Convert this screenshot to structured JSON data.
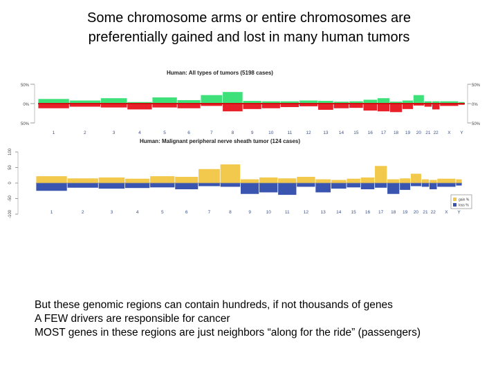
{
  "slide": {
    "title_line1": "Some chromosome arms or entire chromosomes are",
    "title_line2": "preferentially gained and lost in many human tumors",
    "bullets": [
      "But these genomic regions can contain hundreds, if not thousands of genes",
      "A FEW drivers are responsible for cancer",
      "MOST genes in these regions are just neighbors “along for the ride” (passengers)"
    ]
  },
  "colors": {
    "gain_top": "#3ee07a",
    "loss_top": "#e8202a",
    "baseline_top": "#cc1111",
    "gain_bottom": "#f2c94c",
    "loss_bottom": "#3a55b0",
    "axis": "#555555"
  },
  "chart_data": [
    {
      "type": "area",
      "title": "Human: All types of tumors (5198 cases)",
      "y_tick_labels_left": [
        "50%",
        "0%",
        "50%"
      ],
      "y_tick_labels_right": [
        "50%",
        "0%",
        "50%"
      ],
      "ylim": [
        -50,
        50
      ],
      "categories": [
        "1",
        "2",
        "3",
        "4",
        "5",
        "6",
        "7",
        "8",
        "9",
        "10",
        "11",
        "12",
        "13",
        "14",
        "15",
        "16",
        "17",
        "18",
        "19",
        "20",
        "21",
        "22",
        "X",
        "Y"
      ],
      "series": [
        {
          "role": "gain",
          "values": [
            12,
            8,
            14,
            4,
            16,
            9,
            22,
            30,
            7,
            6,
            6,
            8,
            7,
            5,
            6,
            10,
            14,
            5,
            8,
            22,
            6,
            6,
            6,
            4
          ]
        },
        {
          "role": "loss",
          "values": [
            -12,
            -8,
            -10,
            -15,
            -10,
            -12,
            -6,
            -20,
            -14,
            -12,
            -9,
            -7,
            -16,
            -12,
            -11,
            -18,
            -20,
            -22,
            -14,
            -5,
            -8,
            -15,
            -6,
            -3
          ]
        }
      ]
    },
    {
      "type": "area",
      "title": "Human: Malignant peripheral nerve sheath tumor (124 cases)",
      "y_tick_labels": [
        "100",
        "50",
        "0",
        "-50",
        "-100"
      ],
      "ylim": [
        -100,
        100
      ],
      "categories": [
        "1",
        "2",
        "3",
        "4",
        "5",
        "6",
        "7",
        "8",
        "9",
        "10",
        "11",
        "12",
        "13",
        "14",
        "15",
        "16",
        "17",
        "18",
        "19",
        "20",
        "21",
        "22",
        "X",
        "Y"
      ],
      "legend": {
        "entries": [
          "gain %",
          "loss %"
        ],
        "placement": "right"
      },
      "series": [
        {
          "name": "gain %",
          "values": [
            22,
            15,
            18,
            14,
            22,
            20,
            45,
            60,
            12,
            18,
            15,
            20,
            12,
            10,
            14,
            18,
            55,
            12,
            15,
            30,
            12,
            10,
            14,
            12
          ]
        },
        {
          "name": "loss %",
          "values": [
            -25,
            -15,
            -18,
            -16,
            -14,
            -20,
            -10,
            -12,
            -35,
            -30,
            -38,
            -12,
            -30,
            -18,
            -14,
            -20,
            -15,
            -35,
            -22,
            -10,
            -12,
            -20,
            -12,
            -8
          ]
        }
      ]
    }
  ]
}
